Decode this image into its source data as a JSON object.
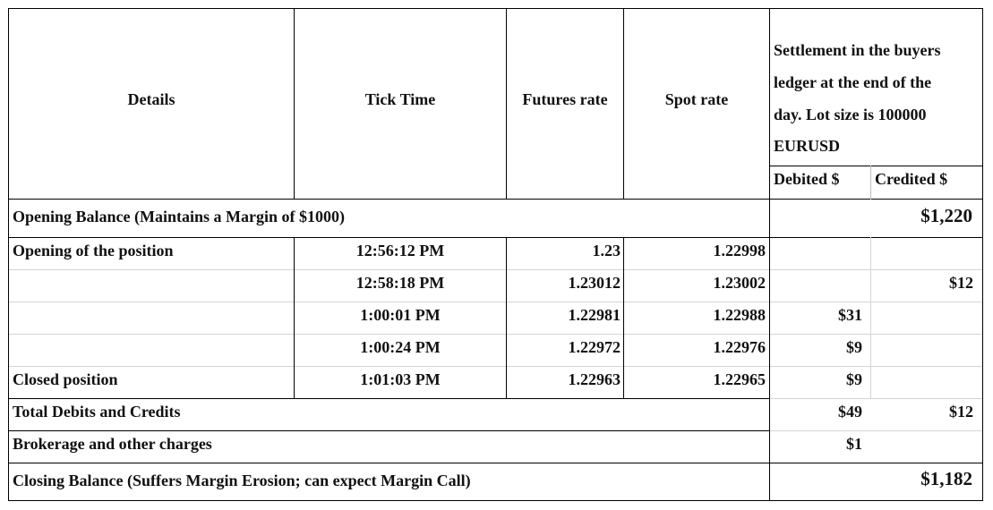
{
  "header": {
    "details": "Details",
    "tick_time": "Tick Time",
    "futures_rate": "Futures rate",
    "spot_rate": "Spot rate",
    "settlement_lines": [
      "Settlement in the buyers",
      "ledger at the end of the",
      "day. Lot size is 100000",
      "EURUSD"
    ],
    "debited": "Debited $",
    "credited": "Credited $"
  },
  "opening_balance": {
    "label": "Opening Balance (Maintains a Margin of $1000)",
    "amount": "$1,220"
  },
  "rows": [
    {
      "details": "Opening of the position",
      "time": "12:56:12 PM",
      "futures": "1.23",
      "spot": "1.22998",
      "debit": "",
      "credit": ""
    },
    {
      "details": "",
      "time": "12:58:18 PM",
      "futures": "1.23012",
      "spot": "1.23002",
      "debit": "",
      "credit": "$12"
    },
    {
      "details": "",
      "time": "1:00:01 PM",
      "futures": "1.22981",
      "spot": "1.22988",
      "debit": "$31",
      "credit": ""
    },
    {
      "details": "",
      "time": "1:00:24 PM",
      "futures": "1.22972",
      "spot": "1.22976",
      "debit": "$9",
      "credit": ""
    },
    {
      "details": "Closed position",
      "time": "1:01:03 PM",
      "futures": "1.22963",
      "spot": "1.22965",
      "debit": "$9",
      "credit": ""
    }
  ],
  "totals": {
    "label": "Total Debits and Credits",
    "debit": "$49",
    "credit": "$12"
  },
  "brokerage": {
    "label": "Brokerage and other charges",
    "debit": "$1"
  },
  "closing_balance": {
    "label": "Closing Balance (Suffers Margin Erosion; can expect Margin Call)",
    "amount": "$1,182"
  }
}
